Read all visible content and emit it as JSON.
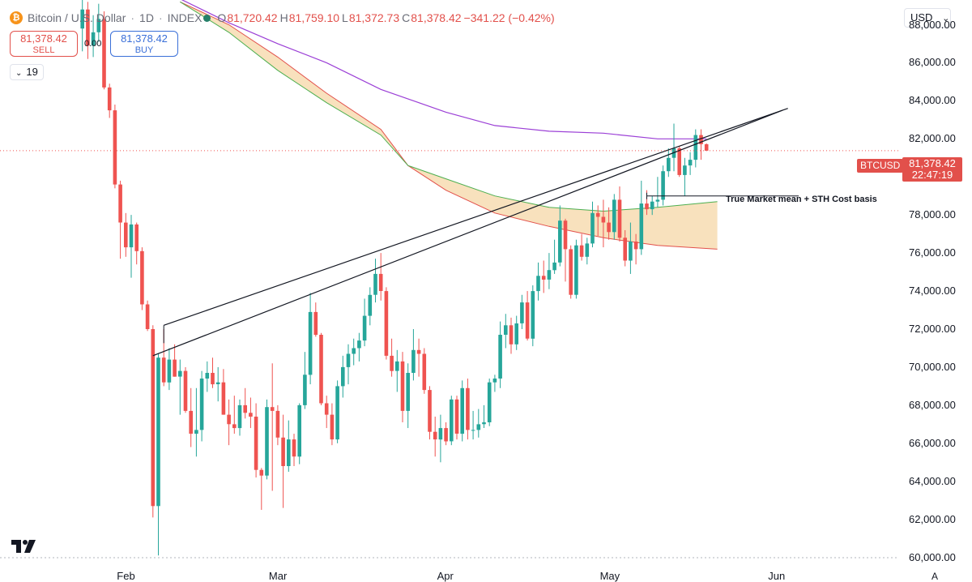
{
  "header": {
    "symbol": "Bitcoin / U.S. Dollar",
    "interval": "1D",
    "exchange": "INDEX",
    "open_label": "O",
    "open": "81,720.42",
    "high_label": "H",
    "high": "81,759.10",
    "low_label": "L",
    "low": "81,372.73",
    "close_label": "C",
    "close": "81,378.42",
    "change": "−341.22 (−0.42%)",
    "coin_glyph": "₿"
  },
  "trade": {
    "sell_price": "81,378.42",
    "sell_label": "SELL",
    "buy_price": "81,378.42",
    "buy_label": "BUY",
    "spread": "0.00"
  },
  "indicators_toggle": {
    "chevron": "⌄",
    "count": "19"
  },
  "currency": {
    "value": "USD",
    "chevron": "⌄"
  },
  "price_axis_labels": [
    "88,000.00",
    "86,000.00",
    "84,000.00",
    "82,000.00",
    "80,000.00",
    "78,000.00",
    "76,000.00",
    "74,000.00",
    "72,000.00",
    "70,000.00",
    "68,000.00",
    "66,000.00",
    "64,000.00",
    "62,000.00",
    "60,000.00"
  ],
  "last_price": {
    "symbol": "BTCUSD",
    "price": "81,378.42",
    "countdown": "22:47:19"
  },
  "annotation": "True Market mean + STH Cost basis",
  "scale_mode": "A",
  "colors": {
    "up": "#26a69a",
    "down": "#ef5350",
    "ma_purple": "#9b3fd6",
    "band_fill": "#f6d7a7",
    "band_upper": "#e2504b",
    "band_lower": "#4caf50",
    "trendline": "#131722"
  },
  "chart_data": {
    "type": "candlestick",
    "title": "Bitcoin / U.S. Dollar · 1D · INDEX",
    "y_range": [
      59900,
      89000
    ],
    "x_range": [
      "2025-01-23",
      "2025-06-08"
    ],
    "x_ticks": [
      {
        "date": "2025-02-01",
        "label": "Feb"
      },
      {
        "date": "2025-03-01",
        "label": "Mar"
      },
      {
        "date": "2025-04-01",
        "label": "Apr"
      },
      {
        "date": "2025-05-01",
        "label": "May"
      },
      {
        "date": "2025-06-01",
        "label": "Jun"
      }
    ],
    "candles": [
      {
        "date": "2025-01-24",
        "o": 87800,
        "h": 89300,
        "l": 86600,
        "c": 88800
      },
      {
        "date": "2025-01-25",
        "o": 88800,
        "h": 89200,
        "l": 86200,
        "c": 86900
      },
      {
        "date": "2025-01-26",
        "o": 86900,
        "h": 88500,
        "l": 86300,
        "c": 87600
      },
      {
        "date": "2025-01-27",
        "o": 87600,
        "h": 89100,
        "l": 87100,
        "c": 88300
      },
      {
        "date": "2025-01-28",
        "o": 88300,
        "h": 88700,
        "l": 84600,
        "c": 84700
      },
      {
        "date": "2025-01-29",
        "o": 84700,
        "h": 84900,
        "l": 83100,
        "c": 83500
      },
      {
        "date": "2025-01-30",
        "o": 83500,
        "h": 83800,
        "l": 79400,
        "c": 79600
      },
      {
        "date": "2025-01-31",
        "o": 79600,
        "h": 79800,
        "l": 75700,
        "c": 77600
      },
      {
        "date": "2025-02-01",
        "o": 77600,
        "h": 78100,
        "l": 75800,
        "c": 76300
      },
      {
        "date": "2025-02-02",
        "o": 76300,
        "h": 78000,
        "l": 74700,
        "c": 77500
      },
      {
        "date": "2025-02-03",
        "o": 77500,
        "h": 77600,
        "l": 75400,
        "c": 76100
      },
      {
        "date": "2025-02-04",
        "o": 76100,
        "h": 76300,
        "l": 73000,
        "c": 73300
      },
      {
        "date": "2025-02-05",
        "o": 73300,
        "h": 73500,
        "l": 71900,
        "c": 72000
      },
      {
        "date": "2025-02-06",
        "o": 72000,
        "h": 72200,
        "l": 62100,
        "c": 62700
      },
      {
        "date": "2025-02-07",
        "o": 62700,
        "h": 70700,
        "l": 60100,
        "c": 70500
      },
      {
        "date": "2025-02-08",
        "o": 70500,
        "h": 72000,
        "l": 69000,
        "c": 69200
      },
      {
        "date": "2025-02-09",
        "o": 69200,
        "h": 71000,
        "l": 68800,
        "c": 70400
      },
      {
        "date": "2025-02-10",
        "o": 70400,
        "h": 71200,
        "l": 69500,
        "c": 69500
      },
      {
        "date": "2025-02-11",
        "o": 69500,
        "h": 70400,
        "l": 67500,
        "c": 69800
      },
      {
        "date": "2025-02-12",
        "o": 69800,
        "h": 70000,
        "l": 67600,
        "c": 67700
      },
      {
        "date": "2025-02-13",
        "o": 67700,
        "h": 68900,
        "l": 65800,
        "c": 66500
      },
      {
        "date": "2025-02-14",
        "o": 66500,
        "h": 68900,
        "l": 65300,
        "c": 66700
      },
      {
        "date": "2025-02-15",
        "o": 66700,
        "h": 69800,
        "l": 66100,
        "c": 69400
      },
      {
        "date": "2025-02-16",
        "o": 69400,
        "h": 70300,
        "l": 68700,
        "c": 69700
      },
      {
        "date": "2025-02-17",
        "o": 69700,
        "h": 70500,
        "l": 68900,
        "c": 69100
      },
      {
        "date": "2025-02-18",
        "o": 69100,
        "h": 70000,
        "l": 68200,
        "c": 69200
      },
      {
        "date": "2025-02-19",
        "o": 69200,
        "h": 69900,
        "l": 67500,
        "c": 67500
      },
      {
        "date": "2025-02-20",
        "o": 67500,
        "h": 68300,
        "l": 65900,
        "c": 67000
      },
      {
        "date": "2025-02-21",
        "o": 67000,
        "h": 68500,
        "l": 66500,
        "c": 66800
      },
      {
        "date": "2025-02-22",
        "o": 66800,
        "h": 68300,
        "l": 66400,
        "c": 68000
      },
      {
        "date": "2025-02-23",
        "o": 68000,
        "h": 68900,
        "l": 67300,
        "c": 67600
      },
      {
        "date": "2025-02-24",
        "o": 67600,
        "h": 68400,
        "l": 66800,
        "c": 67400
      },
      {
        "date": "2025-02-25",
        "o": 67400,
        "h": 68100,
        "l": 64200,
        "c": 64600
      },
      {
        "date": "2025-02-26",
        "o": 64600,
        "h": 64700,
        "l": 62500,
        "c": 64300
      },
      {
        "date": "2025-02-27",
        "o": 64300,
        "h": 68300,
        "l": 64100,
        "c": 67900
      },
      {
        "date": "2025-02-28",
        "o": 67900,
        "h": 70200,
        "l": 63500,
        "c": 67700
      },
      {
        "date": "2025-03-01",
        "o": 67700,
        "h": 68000,
        "l": 65900,
        "c": 66300
      },
      {
        "date": "2025-03-02",
        "o": 66300,
        "h": 67500,
        "l": 62600,
        "c": 64800
      },
      {
        "date": "2025-03-03",
        "o": 64800,
        "h": 67200,
        "l": 64500,
        "c": 66200
      },
      {
        "date": "2025-03-04",
        "o": 66200,
        "h": 66500,
        "l": 64800,
        "c": 65300
      },
      {
        "date": "2025-03-05",
        "o": 65300,
        "h": 68100,
        "l": 64900,
        "c": 68000
      },
      {
        "date": "2025-03-06",
        "o": 68000,
        "h": 70800,
        "l": 67800,
        "c": 69600
      },
      {
        "date": "2025-03-07",
        "o": 69600,
        "h": 73900,
        "l": 69100,
        "c": 72900
      },
      {
        "date": "2025-03-08",
        "o": 72900,
        "h": 73400,
        "l": 71600,
        "c": 71700
      },
      {
        "date": "2025-03-09",
        "o": 71700,
        "h": 71800,
        "l": 68000,
        "c": 68100
      },
      {
        "date": "2025-03-10",
        "o": 68100,
        "h": 68500,
        "l": 66800,
        "c": 67500
      },
      {
        "date": "2025-03-11",
        "o": 67500,
        "h": 68100,
        "l": 65900,
        "c": 66200
      },
      {
        "date": "2025-03-12",
        "o": 66200,
        "h": 69300,
        "l": 66000,
        "c": 69000
      },
      {
        "date": "2025-03-13",
        "o": 69000,
        "h": 70600,
        "l": 68400,
        "c": 70000
      },
      {
        "date": "2025-03-14",
        "o": 70000,
        "h": 71200,
        "l": 69100,
        "c": 70700
      },
      {
        "date": "2025-03-15",
        "o": 70700,
        "h": 71500,
        "l": 70100,
        "c": 71000
      },
      {
        "date": "2025-03-16",
        "o": 71000,
        "h": 71800,
        "l": 70300,
        "c": 71400
      },
      {
        "date": "2025-03-17",
        "o": 71400,
        "h": 73600,
        "l": 71100,
        "c": 72700
      },
      {
        "date": "2025-03-18",
        "o": 72700,
        "h": 74200,
        "l": 72200,
        "c": 73800
      },
      {
        "date": "2025-03-19",
        "o": 73800,
        "h": 75700,
        "l": 73400,
        "c": 74900
      },
      {
        "date": "2025-03-20",
        "o": 74900,
        "h": 76000,
        "l": 73500,
        "c": 74000
      },
      {
        "date": "2025-03-21",
        "o": 74000,
        "h": 74200,
        "l": 70400,
        "c": 70600
      },
      {
        "date": "2025-03-22",
        "o": 70600,
        "h": 71500,
        "l": 69500,
        "c": 69800
      },
      {
        "date": "2025-03-23",
        "o": 69800,
        "h": 70900,
        "l": 68700,
        "c": 70300
      },
      {
        "date": "2025-03-24",
        "o": 70300,
        "h": 70800,
        "l": 67100,
        "c": 67700
      },
      {
        "date": "2025-03-25",
        "o": 67700,
        "h": 70200,
        "l": 66800,
        "c": 69700
      },
      {
        "date": "2025-03-26",
        "o": 69700,
        "h": 72000,
        "l": 69300,
        "c": 70900
      },
      {
        "date": "2025-03-27",
        "o": 70900,
        "h": 71500,
        "l": 69500,
        "c": 70700
      },
      {
        "date": "2025-03-28",
        "o": 70700,
        "h": 71000,
        "l": 68600,
        "c": 68800
      },
      {
        "date": "2025-03-29",
        "o": 68800,
        "h": 69000,
        "l": 66200,
        "c": 66600
      },
      {
        "date": "2025-03-30",
        "o": 66600,
        "h": 67400,
        "l": 65300,
        "c": 66200
      },
      {
        "date": "2025-03-31",
        "o": 66200,
        "h": 67500,
        "l": 65000,
        "c": 66800
      },
      {
        "date": "2025-04-01",
        "o": 66800,
        "h": 67100,
        "l": 65900,
        "c": 66100
      },
      {
        "date": "2025-04-02",
        "o": 66100,
        "h": 68500,
        "l": 65900,
        "c": 68300
      },
      {
        "date": "2025-04-03",
        "o": 68300,
        "h": 68500,
        "l": 66200,
        "c": 66500
      },
      {
        "date": "2025-04-04",
        "o": 66500,
        "h": 69300,
        "l": 66100,
        "c": 68900
      },
      {
        "date": "2025-04-05",
        "o": 68900,
        "h": 69400,
        "l": 66200,
        "c": 66700
      },
      {
        "date": "2025-04-06",
        "o": 66700,
        "h": 67700,
        "l": 66200,
        "c": 66700
      },
      {
        "date": "2025-04-07",
        "o": 66700,
        "h": 67800,
        "l": 66300,
        "c": 67000
      },
      {
        "date": "2025-04-08",
        "o": 67000,
        "h": 68000,
        "l": 66800,
        "c": 67100
      },
      {
        "date": "2025-04-09",
        "o": 67100,
        "h": 69400,
        "l": 66900,
        "c": 69200
      },
      {
        "date": "2025-04-10",
        "o": 69200,
        "h": 69600,
        "l": 68700,
        "c": 69400
      },
      {
        "date": "2025-04-11",
        "o": 69400,
        "h": 72400,
        "l": 68900,
        "c": 71700
      },
      {
        "date": "2025-04-12",
        "o": 71700,
        "h": 72800,
        "l": 71000,
        "c": 72200
      },
      {
        "date": "2025-04-13",
        "o": 72200,
        "h": 72600,
        "l": 70700,
        "c": 71200
      },
      {
        "date": "2025-04-14",
        "o": 71200,
        "h": 72700,
        "l": 70900,
        "c": 72300
      },
      {
        "date": "2025-04-15",
        "o": 72300,
        "h": 73800,
        "l": 72000,
        "c": 73400
      },
      {
        "date": "2025-04-16",
        "o": 73400,
        "h": 74000,
        "l": 71400,
        "c": 71500
      },
      {
        "date": "2025-04-17",
        "o": 71500,
        "h": 74300,
        "l": 71100,
        "c": 74000
      },
      {
        "date": "2025-04-18",
        "o": 74000,
        "h": 75500,
        "l": 73500,
        "c": 74800
      },
      {
        "date": "2025-04-19",
        "o": 74800,
        "h": 75600,
        "l": 73900,
        "c": 74600
      },
      {
        "date": "2025-04-20",
        "o": 74600,
        "h": 76000,
        "l": 74100,
        "c": 75100
      },
      {
        "date": "2025-04-21",
        "o": 75100,
        "h": 76700,
        "l": 74900,
        "c": 75500
      },
      {
        "date": "2025-04-22",
        "o": 75500,
        "h": 78500,
        "l": 75300,
        "c": 77700
      },
      {
        "date": "2025-04-23",
        "o": 77700,
        "h": 77800,
        "l": 74500,
        "c": 76200
      },
      {
        "date": "2025-04-24",
        "o": 76200,
        "h": 76400,
        "l": 73600,
        "c": 73800
      },
      {
        "date": "2025-04-25",
        "o": 73800,
        "h": 76700,
        "l": 73600,
        "c": 76400
      },
      {
        "date": "2025-04-26",
        "o": 76400,
        "h": 77000,
        "l": 75600,
        "c": 75800
      },
      {
        "date": "2025-04-27",
        "o": 75800,
        "h": 76800,
        "l": 75400,
        "c": 76500
      },
      {
        "date": "2025-04-28",
        "o": 76500,
        "h": 78700,
        "l": 76300,
        "c": 78100
      },
      {
        "date": "2025-04-29",
        "o": 78100,
        "h": 78500,
        "l": 76900,
        "c": 77900
      },
      {
        "date": "2025-04-30",
        "o": 77900,
        "h": 78800,
        "l": 76300,
        "c": 77600
      },
      {
        "date": "2025-05-01",
        "o": 77600,
        "h": 78400,
        "l": 76700,
        "c": 77100
      },
      {
        "date": "2025-05-02",
        "o": 77100,
        "h": 79100,
        "l": 76700,
        "c": 78800
      },
      {
        "date": "2025-05-03",
        "o": 78800,
        "h": 79500,
        "l": 76600,
        "c": 76800
      },
      {
        "date": "2025-05-04",
        "o": 76800,
        "h": 77200,
        "l": 75300,
        "c": 75600
      },
      {
        "date": "2025-05-05",
        "o": 75600,
        "h": 77600,
        "l": 74900,
        "c": 76600
      },
      {
        "date": "2025-05-06",
        "o": 76600,
        "h": 77000,
        "l": 75400,
        "c": 76200
      },
      {
        "date": "2025-05-07",
        "o": 76200,
        "h": 79800,
        "l": 75900,
        "c": 78600
      },
      {
        "date": "2025-05-08",
        "o": 78600,
        "h": 79300,
        "l": 78000,
        "c": 78300
      },
      {
        "date": "2025-05-09",
        "o": 78300,
        "h": 79000,
        "l": 78000,
        "c": 78700
      },
      {
        "date": "2025-05-10",
        "o": 78700,
        "h": 80000,
        "l": 78400,
        "c": 78800
      },
      {
        "date": "2025-05-11",
        "o": 78800,
        "h": 80600,
        "l": 78500,
        "c": 80300
      },
      {
        "date": "2025-05-12",
        "o": 80300,
        "h": 81500,
        "l": 80000,
        "c": 81000
      },
      {
        "date": "2025-05-13",
        "o": 81000,
        "h": 82800,
        "l": 80300,
        "c": 81500
      },
      {
        "date": "2025-05-14",
        "o": 81500,
        "h": 81600,
        "l": 80000,
        "c": 80100
      },
      {
        "date": "2025-05-15",
        "o": 80100,
        "h": 81000,
        "l": 79000,
        "c": 80600
      },
      {
        "date": "2025-05-16",
        "o": 80600,
        "h": 81300,
        "l": 80100,
        "c": 80900
      },
      {
        "date": "2025-05-17",
        "o": 80900,
        "h": 82500,
        "l": 80500,
        "c": 82200
      },
      {
        "date": "2025-05-18",
        "o": 82200,
        "h": 82500,
        "l": 80900,
        "c": 81720.42
      },
      {
        "date": "2025-05-19",
        "o": 81720.42,
        "h": 81759.1,
        "l": 81372.73,
        "c": 81378.42
      }
    ],
    "moving_average": {
      "color": "#9b3fd6",
      "points": [
        [
          "2025-02-10",
          89500
        ],
        [
          "2025-02-20",
          88100
        ],
        [
          "2025-03-01",
          87000
        ],
        [
          "2025-03-10",
          86000
        ],
        [
          "2025-03-20",
          84600
        ],
        [
          "2025-04-01",
          83400
        ],
        [
          "2025-04-10",
          82700
        ],
        [
          "2025-04-20",
          82400
        ],
        [
          "2025-04-30",
          82300
        ],
        [
          "2025-05-10",
          82000
        ],
        [
          "2025-05-19",
          82000
        ]
      ]
    },
    "band": {
      "upper": [
        [
          "2025-02-11",
          89200
        ],
        [
          "2025-02-20",
          88000
        ],
        [
          "2025-03-01",
          86300
        ],
        [
          "2025-03-10",
          84400
        ],
        [
          "2025-03-20",
          82500
        ],
        [
          "2025-03-25",
          80600
        ],
        [
          "2025-04-01",
          79300
        ],
        [
          "2025-04-10",
          78100
        ],
        [
          "2025-04-20",
          77400
        ],
        [
          "2025-04-30",
          76800
        ],
        [
          "2025-05-10",
          76400
        ],
        [
          "2025-05-21",
          76200
        ]
      ],
      "lower": [
        [
          "2025-02-11",
          89200
        ],
        [
          "2025-02-20",
          87600
        ],
        [
          "2025-03-01",
          85600
        ],
        [
          "2025-03-10",
          83900
        ],
        [
          "2025-03-20",
          82200
        ],
        [
          "2025-03-25",
          80600
        ],
        [
          "2025-04-01",
          79900
        ],
        [
          "2025-04-10",
          79000
        ],
        [
          "2025-04-20",
          78400
        ],
        [
          "2025-04-30",
          78200
        ],
        [
          "2025-05-10",
          78400
        ],
        [
          "2025-05-21",
          78700
        ]
      ]
    },
    "trendlines": [
      {
        "from": [
          "2025-02-08",
          72200
        ],
        "to": [
          "2025-06-03",
          83600
        ]
      },
      {
        "from": [
          "2025-02-06",
          70600
        ],
        "to": [
          "2025-06-02",
          83500
        ]
      }
    ],
    "annotation_line": {
      "from": [
        "2025-05-08",
        79000
      ],
      "to": [
        "2025-06-05",
        79000
      ]
    },
    "last_price_line": 81378.42
  }
}
